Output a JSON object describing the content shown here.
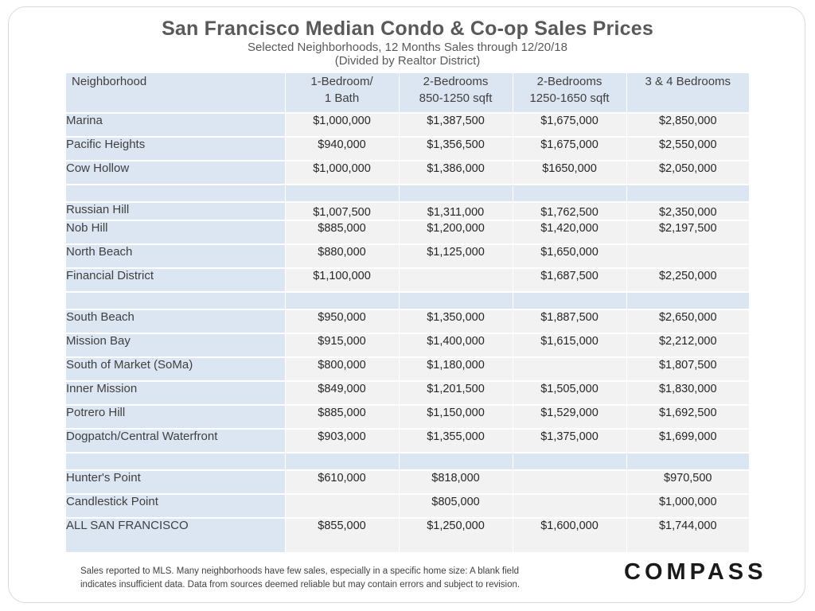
{
  "header": {
    "title": "San Francisco Median Condo & Co-op Sales Prices",
    "subtitle_line1": "Selected Neighborhoods, 12 Months Sales through 12/20/18",
    "subtitle_line2": "(Divided by Realtor District)"
  },
  "table": {
    "columns": {
      "neighborhood": "Neighborhood",
      "one_bed_line1": "1-Bedroom/",
      "one_bed_line2": "1 Bath",
      "two_bed_small_line1": "2-Bedrooms",
      "two_bed_small_line2": "850-1250 sqft",
      "two_bed_large_line1": "2-Bedrooms",
      "two_bed_large_line2": "1250-1650 sqft",
      "three_four_bed": "3 & 4 Bedrooms"
    },
    "groups": [
      [
        {
          "name": "Marina",
          "v": [
            "$1,000,000",
            "$1,387,500",
            "$1,675,000",
            "$2,850,000"
          ]
        },
        {
          "name": "Pacific Heights",
          "v": [
            "$940,000",
            "$1,356,500",
            "$1,675,000",
            "$2,550,000"
          ]
        },
        {
          "name": "Cow Hollow",
          "v": [
            "$1,000,000",
            "$1,386,000",
            "$1650,000",
            "$2,050,000"
          ]
        }
      ],
      [
        {
          "name": "Russian Hill",
          "v": [
            "$1,007,500",
            "$1,311,000",
            "$1,762,500",
            "$2,350,000"
          ]
        },
        {
          "name": "Nob Hill",
          "v": [
            "$885,000",
            "$1,200,000",
            "$1,420,000",
            "$2,197,500"
          ]
        },
        {
          "name": "North Beach",
          "v": [
            "$880,000",
            "$1,125,000",
            "$1,650,000",
            ""
          ]
        },
        {
          "name": "Financial District",
          "v": [
            "$1,100,000",
            "",
            "$1,687,500",
            "$2,250,000"
          ]
        }
      ],
      [
        {
          "name": "South Beach",
          "v": [
            "$950,000",
            "$1,350,000",
            "$1,887,500",
            "$2,650,000"
          ]
        },
        {
          "name": "Mission Bay",
          "v": [
            "$915,000",
            "$1,400,000",
            "$1,615,000",
            "$2,212,000"
          ]
        },
        {
          "name": "South of Market (SoMa)",
          "v": [
            "$800,000",
            "$1,180,000",
            "",
            "$1,807,500"
          ]
        },
        {
          "name": "Inner Mission",
          "v": [
            "$849,000",
            "$1,201,500",
            "$1,505,000",
            "$1,830,000"
          ]
        },
        {
          "name": "Potrero Hill",
          "v": [
            "$885,000",
            "$1,150,000",
            "$1,529,000",
            "$1,692,500"
          ]
        },
        {
          "name": "Dogpatch/Central Waterfront",
          "v": [
            "$903,000",
            "$1,355,000",
            "$1,375,000",
            "$1,699,000"
          ]
        }
      ],
      [
        {
          "name": "Hunter's Point",
          "v": [
            "$610,000",
            "$818,000",
            "",
            "$970,500"
          ]
        },
        {
          "name": "Candlestick Point",
          "v": [
            "",
            "$805,000",
            "",
            "$1,000,000"
          ]
        },
        {
          "name": "ALL SAN FRANCISCO",
          "v": [
            "$855,000",
            "$1,250,000",
            "$1,600,000",
            "$1,744,000"
          ]
        }
      ]
    ]
  },
  "footer": {
    "note_line1": "Sales reported to MLS.  Many neighborhoods have few sales, especially in a specific home size: A blank field",
    "note_line2": "indicates insufficient data. Data from sources deemed  reliable but may contain errors and subject to revision.",
    "logo": "COMPASS"
  }
}
